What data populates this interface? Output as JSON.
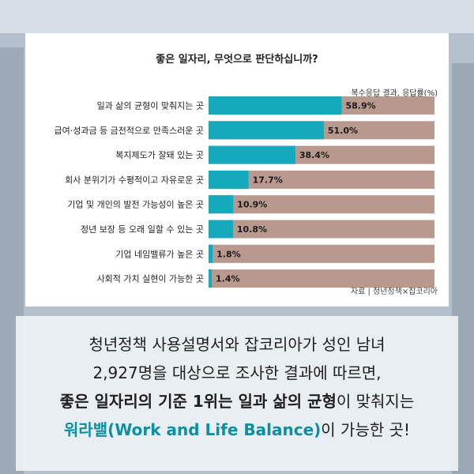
{
  "colors": {
    "bar": "#16a8bb",
    "track": "#b9998d",
    "accent": "#0c8f9e"
  },
  "header": {
    "title": "좋은 일자리, 무엇으로 판단하십니까?",
    "note": "복수응답 결과, 응답률(%)",
    "source": "자료 | 청년정책×잡코리아"
  },
  "chart_data": {
    "type": "bar",
    "orientation": "horizontal",
    "title": "좋은 일자리, 무엇으로 판단하십니까?",
    "categories": [
      "일과 삶의 균형이 맞춰지는 곳",
      "급여·성과금 등 금전적으로 만족스러운 곳",
      "복지제도가 잘돼 있는 곳",
      "회사 분위기가 수평적이고 자유로운 곳",
      "기업 및 개인의 발전 가능성이 높은 곳",
      "정년 보장 등 오래 일할 수 있는 곳",
      "기업 네임밸류가 높은 곳",
      "사회적 가치 실현이 가능한 곳"
    ],
    "values": [
      58.9,
      51.0,
      38.4,
      17.7,
      10.9,
      10.8,
      1.8,
      1.4
    ],
    "value_labels": [
      "58.9%",
      "51.0%",
      "38.4%",
      "17.7%",
      "10.9%",
      "10.8%",
      "1.8%",
      "1.4%"
    ],
    "xlim": [
      0,
      100
    ]
  },
  "caption": {
    "line1": "청년정책 사용설명서와 잡코리아가 성인 남녀",
    "line2": "2,927명을 대상으로 조사한 결과에 따르면,",
    "line3_a": "좋은 일자리의 기준 1위는 일과 삶의 균형",
    "line3_b": "이 맞춰지는",
    "line4_a": "워라밸(Work and Life Balance)",
    "line4_b": "이 가능한 곳!"
  }
}
